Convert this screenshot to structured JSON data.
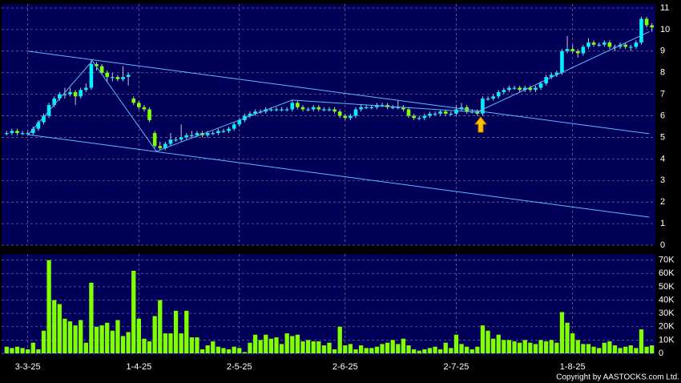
{
  "chart_data": {
    "type": "candlestick",
    "categories": [
      null,
      null,
      null,
      null,
      "3-3-25",
      null,
      null,
      null,
      null,
      null,
      null,
      null,
      null,
      null,
      null,
      null,
      null,
      null,
      null,
      null,
      null,
      null,
      null,
      null,
      null,
      "1-4-25",
      null,
      null,
      null,
      null,
      null,
      null,
      null,
      null,
      null,
      null,
      null,
      null,
      null,
      null,
      null,
      null,
      null,
      null,
      "2-5-25",
      null,
      null,
      null,
      null,
      null,
      null,
      null,
      null,
      null,
      null,
      null,
      null,
      null,
      null,
      null,
      null,
      null,
      null,
      null,
      "2-6-25",
      null,
      null,
      null,
      null,
      null,
      null,
      null,
      null,
      null,
      null,
      null,
      null,
      null,
      null,
      null,
      null,
      null,
      null,
      null,
      null,
      "2-7-25",
      null,
      null,
      null,
      null,
      null,
      null,
      null,
      null,
      null,
      null,
      null,
      null,
      null,
      null,
      null,
      null,
      null,
      null,
      null,
      null,
      null,
      "1-8-25",
      null,
      null,
      null,
      null,
      null,
      null,
      null,
      null,
      null,
      null,
      null,
      null,
      null,
      null,
      null
    ],
    "open": [
      5.2,
      5.2,
      5.3,
      5.2,
      5.2,
      5.2,
      5.4,
      5.7,
      6.0,
      6.5,
      6.8,
      7.0,
      7.0,
      7.1,
      6.9,
      7.2,
      7.3,
      8.4,
      8.3,
      8.0,
      7.8,
      7.8,
      7.7,
      7.8,
      6.8,
      6.6,
      6.4,
      6.3,
      5.2,
      4.6,
      4.5,
      4.7,
      4.9,
      4.9,
      5.0,
      5.1,
      5.1,
      5.2,
      5.1,
      5.2,
      5.2,
      5.3,
      5.3,
      5.4,
      5.6,
      5.8,
      6.0,
      6.1,
      6.2,
      6.2,
      6.3,
      6.3,
      6.3,
      6.3,
      6.3,
      6.6,
      6.4,
      6.3,
      6.3,
      6.4,
      6.3,
      6.3,
      6.3,
      6.2,
      6.0,
      5.9,
      6.0,
      6.3,
      6.4,
      6.4,
      6.4,
      6.5,
      6.5,
      6.4,
      6.4,
      6.4,
      6.3,
      6.0,
      5.9,
      5.9,
      6.0,
      6.1,
      6.1,
      6.2,
      6.1,
      6.1,
      6.3,
      6.4,
      6.2,
      6.2,
      6.1,
      6.8,
      6.8,
      6.9,
      7.1,
      7.2,
      7.3,
      7.3,
      7.2,
      7.3,
      7.2,
      7.3,
      7.5,
      7.8,
      7.9,
      8.0,
      9.0,
      9.1,
      9.0,
      8.9,
      9.2,
      9.4,
      9.3,
      9.3,
      9.4,
      9.2,
      9.2,
      9.3,
      9.2,
      9.2,
      9.4,
      10.5,
      10.2
    ],
    "high": [
      5.3,
      5.4,
      5.4,
      5.3,
      5.3,
      5.5,
      5.8,
      6.1,
      6.6,
      6.9,
      7.1,
      7.3,
      7.3,
      7.2,
      7.3,
      7.5,
      8.6,
      8.5,
      8.4,
      8.1,
      8.0,
      7.9,
      8.3,
      8.0,
      6.9,
      6.7,
      6.5,
      6.4,
      5.3,
      4.8,
      4.8,
      5.2,
      5.0,
      5.6,
      5.2,
      5.3,
      5.3,
      5.3,
      5.3,
      5.3,
      5.4,
      5.4,
      5.5,
      5.7,
      5.9,
      6.1,
      6.2,
      6.3,
      6.3,
      6.4,
      6.4,
      6.4,
      6.4,
      6.4,
      6.7,
      6.7,
      6.5,
      6.4,
      6.5,
      6.5,
      6.4,
      6.4,
      6.4,
      6.3,
      6.1,
      6.1,
      6.4,
      6.5,
      6.5,
      6.5,
      6.6,
      6.6,
      6.6,
      6.5,
      6.7,
      6.5,
      6.4,
      6.1,
      6.0,
      6.1,
      6.2,
      6.2,
      6.3,
      6.3,
      6.2,
      6.5,
      6.6,
      6.5,
      6.3,
      6.3,
      6.9,
      6.9,
      7.0,
      7.2,
      7.3,
      7.4,
      7.4,
      7.4,
      7.4,
      7.4,
      7.4,
      7.6,
      7.9,
      8.0,
      8.1,
      9.1,
      9.7,
      9.3,
      9.1,
      9.3,
      9.6,
      9.5,
      9.4,
      9.5,
      9.5,
      9.3,
      9.4,
      9.4,
      9.3,
      9.5,
      10.6,
      10.6,
      10.3
    ],
    "low": [
      5.1,
      5.1,
      5.1,
      5.1,
      5.1,
      5.1,
      5.3,
      5.6,
      5.9,
      6.4,
      6.7,
      6.8,
      6.9,
      6.5,
      6.8,
      7.1,
      7.2,
      8.1,
      7.9,
      7.6,
      7.6,
      7.6,
      7.6,
      7.4,
      6.5,
      6.3,
      6.2,
      5.7,
      4.5,
      4.4,
      4.4,
      4.6,
      4.8,
      4.8,
      4.9,
      5.0,
      5.0,
      5.0,
      5.0,
      5.1,
      5.1,
      5.2,
      5.2,
      5.3,
      5.5,
      5.7,
      5.9,
      6.0,
      6.1,
      6.1,
      6.2,
      6.2,
      6.2,
      6.2,
      6.2,
      6.3,
      6.2,
      6.2,
      6.2,
      6.2,
      6.2,
      6.2,
      6.1,
      5.9,
      5.8,
      5.8,
      5.9,
      6.2,
      6.3,
      6.3,
      6.3,
      6.4,
      6.3,
      6.3,
      6.3,
      6.2,
      5.9,
      5.8,
      5.8,
      5.8,
      5.9,
      6.0,
      6.0,
      6.0,
      6.0,
      6.0,
      6.2,
      6.1,
      6.1,
      6.0,
      6.0,
      6.7,
      6.7,
      6.8,
      7.0,
      7.1,
      7.2,
      7.1,
      7.1,
      7.1,
      7.1,
      7.2,
      7.4,
      7.7,
      7.8,
      7.9,
      8.9,
      8.9,
      8.7,
      8.8,
      9.1,
      9.2,
      9.2,
      9.2,
      9.1,
      9.0,
      9.1,
      9.1,
      9.0,
      9.1,
      9.3,
      10.1,
      9.9
    ],
    "close": [
      5.2,
      5.3,
      5.2,
      5.2,
      5.2,
      5.4,
      5.7,
      6.0,
      6.5,
      6.8,
      7.0,
      7.0,
      7.1,
      6.9,
      7.2,
      7.3,
      8.4,
      8.3,
      8.0,
      7.8,
      7.8,
      7.7,
      7.8,
      7.9,
      6.6,
      6.4,
      6.3,
      5.8,
      4.6,
      4.5,
      4.7,
      4.9,
      4.9,
      5.0,
      5.1,
      5.1,
      5.2,
      5.1,
      5.2,
      5.2,
      5.3,
      5.3,
      5.4,
      5.6,
      5.8,
      6.0,
      6.1,
      6.2,
      6.2,
      6.3,
      6.3,
      6.3,
      6.3,
      6.3,
      6.6,
      6.4,
      6.3,
      6.3,
      6.4,
      6.3,
      6.3,
      6.3,
      6.2,
      6.0,
      5.9,
      6.0,
      6.3,
      6.4,
      6.4,
      6.4,
      6.5,
      6.5,
      6.4,
      6.4,
      6.4,
      6.3,
      6.0,
      5.9,
      5.9,
      6.0,
      6.1,
      6.1,
      6.2,
      6.1,
      6.1,
      6.3,
      6.4,
      6.2,
      6.2,
      6.1,
      6.8,
      6.8,
      6.9,
      7.1,
      7.2,
      7.3,
      7.3,
      7.2,
      7.3,
      7.2,
      7.3,
      7.5,
      7.8,
      7.9,
      8.0,
      9.0,
      9.1,
      9.0,
      8.9,
      9.2,
      9.4,
      9.3,
      9.3,
      9.4,
      9.2,
      9.2,
      9.3,
      9.2,
      9.2,
      9.4,
      10.5,
      10.2,
      10.1
    ],
    "volume": [
      5000,
      4000,
      5000,
      4000,
      3000,
      8000,
      3000,
      17000,
      70000,
      40000,
      37000,
      26000,
      24000,
      21000,
      25000,
      8000,
      53000,
      20000,
      21000,
      23000,
      17000,
      25000,
      13000,
      16000,
      62000,
      26000,
      11000,
      9000,
      28000,
      40000,
      15000,
      15000,
      32000,
      15000,
      32000,
      12000,
      12000,
      3000,
      6000,
      9000,
      5000,
      4000,
      3000,
      5000,
      4000,
      1000,
      8000,
      14000,
      10000,
      14000,
      11000,
      12000,
      7000,
      15000,
      13000,
      14000,
      9000,
      10000,
      9000,
      9000,
      6000,
      8000,
      3000,
      20000,
      6000,
      7000,
      3000,
      6000,
      4000,
      4000,
      5000,
      7000,
      8000,
      10000,
      7000,
      11000,
      6000,
      3000,
      2000,
      3000,
      4000,
      5000,
      3000,
      8000,
      4000,
      14000,
      7000,
      5000,
      3000,
      5000,
      21000,
      17000,
      11000,
      14000,
      10000,
      10000,
      9000,
      8000,
      10000,
      8000,
      7000,
      10000,
      9000,
      10000,
      8000,
      31000,
      23000,
      15000,
      10000,
      7000,
      7000,
      5000,
      4000,
      8000,
      9000,
      6000,
      4000,
      5000,
      6000,
      4000,
      18000,
      5000,
      6000
    ],
    "ylim": [
      0,
      11
    ],
    "yticks": [
      0,
      1,
      2,
      3,
      4,
      5,
      6,
      7,
      8,
      9,
      10,
      11
    ],
    "volume_ylim": [
      0,
      74000
    ],
    "volume_yticks": [
      0,
      {
        "value": 10000,
        "label": "10K"
      },
      {
        "value": 20000,
        "label": "20K"
      },
      {
        "value": 30000,
        "label": "30K"
      },
      {
        "value": 40000,
        "label": "40K"
      },
      {
        "value": 50000,
        "label": "50K"
      },
      {
        "value": 60000,
        "label": "60K"
      },
      {
        "value": 70000,
        "label": "70K"
      }
    ],
    "up_color": "#00f0ff",
    "down_color": "#80ff00",
    "volume_color": "#80ff00",
    "grid": true,
    "trendlines": [
      {
        "x": [
          4,
          121.5
        ],
        "y": [
          9.0,
          5.17
        ]
      },
      {
        "x": [
          4,
          121.5
        ],
        "y": [
          5.13,
          1.3
        ]
      },
      {
        "x": [
          4,
          16.2,
          28.3,
          54,
          88.9,
          121.5
        ],
        "y": [
          5.1,
          8.55,
          4.35,
          6.73,
          6.17,
          9.9
        ]
      }
    ],
    "trendline_color": "#5fb8ff",
    "copyright": "Copyright by AASTOCKS.com Ltd."
  }
}
